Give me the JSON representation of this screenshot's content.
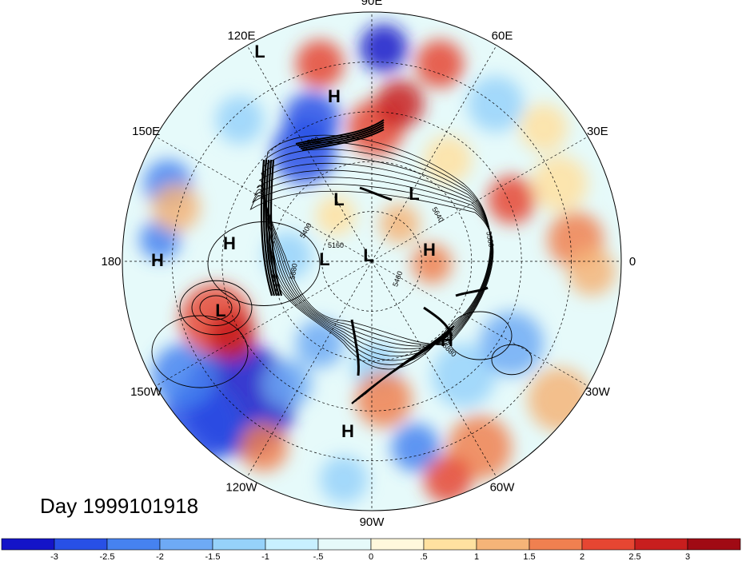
{
  "title": "Day 1999101918",
  "longitude_labels": [
    "90E",
    "60E",
    "30E",
    "0",
    "30W",
    "60W",
    "90W",
    "120W",
    "150W",
    "180",
    "150E",
    "120E"
  ],
  "pressure_centers": [
    {
      "type": "L"
    },
    {
      "type": "H"
    },
    {
      "type": "L"
    },
    {
      "type": "L"
    },
    {
      "type": "L"
    },
    {
      "type": "L"
    },
    {
      "type": "H"
    },
    {
      "type": "H"
    },
    {
      "type": "H"
    },
    {
      "type": "L"
    },
    {
      "type": "H"
    },
    {
      "type": "H"
    }
  ],
  "contour_labels": [
    "5580",
    "5880",
    "5880",
    "5160",
    "5640",
    "5460",
    "5580",
    "5400"
  ],
  "colorbar": {
    "tick_labels": [
      "-3",
      "-2.5",
      "-2",
      "-1.5",
      "-1",
      "-.5",
      "0",
      ".5",
      "1",
      "1.5",
      "2",
      "2.5",
      "3"
    ],
    "colors": [
      "#1414c8",
      "#2850e6",
      "#4682f0",
      "#6eaaf5",
      "#96d2fa",
      "#c8f0ff",
      "#e6fafa",
      "#fff8dc",
      "#ffe1a0",
      "#f5b478",
      "#f08050",
      "#e64632",
      "#c81e1e",
      "#a00a14"
    ]
  },
  "colors": {
    "background": "#ffffff",
    "contour": "#000000"
  }
}
